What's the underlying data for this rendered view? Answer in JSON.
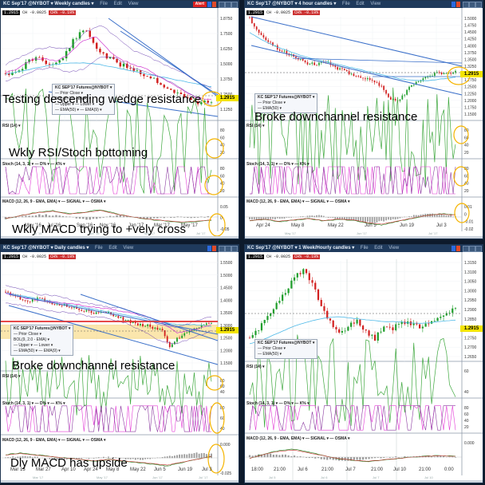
{
  "colors": {
    "up": "#1f9e2b",
    "down": "#d22020",
    "bollinger": "#6a3fb0",
    "ema50": "#4db9e8",
    "ema9": "#d03ad0",
    "trendline": "#3a6fc9",
    "rsi": "#3fa83f",
    "stoch_d": "#8b3aa0",
    "stoch_k": "#e33ad6",
    "macd": "#2a8a2a",
    "signal": "#cc3333",
    "osma": "#9a9a9a",
    "highlight": "#f5b400",
    "price": "#f4e400"
  },
  "panels": [
    {
      "title": "KC Sep'17 @NYBOT ▾  Weekly candles ▾",
      "menu": [
        "File",
        "Edit",
        "View"
      ],
      "alert_label": "Alert",
      "quote": {
        "last": "1.2915",
        "change": "CH -0.0025",
        "pct": "CH% -0.19%"
      },
      "legend": {
        "head": "KC SEP'17 Futures@NYBOT ▾",
        "rows": [
          "— Prior Close ▾",
          "BOL(9, 2.0 - EMA) ▾",
          "— Upper ▾  — Lower ▾",
          "— EMA(50) ▾  — EMA(9) ▾"
        ]
      },
      "price_tag": "1.2915",
      "y_ticks": [
        "1.8750",
        "1.7500",
        "1.6250",
        "1.5000",
        "1.3750",
        "1.2500",
        "1.1250"
      ],
      "x_ticks": [
        "May '16",
        "Jul '16",
        "Sep '16",
        "Nov '16",
        "Jan '17",
        "Mar '17",
        "May '17"
      ],
      "x_ticks2": [
        "Jul '16",
        "Nov '16",
        "Mar '17",
        "Jul '17"
      ],
      "rsi_label": "RSI   (14) ▾",
      "rsi_ticks": [
        "80",
        "60",
        "40",
        "20"
      ],
      "stoch_label": "Stoch   (14, 3, 1) ▾   — D% ▾   — K% ▾",
      "stoch_ticks": [
        "80",
        "60",
        "40",
        "20"
      ],
      "macd_label": "MACD   (12, 26, 9 - EMA, EMA) ▾   — SIGNAL ▾   — OSMA ▾",
      "macd_ticks": [
        "0.05",
        "0",
        "-0.05"
      ],
      "captions": [
        "Testing descending wedge resistance",
        "Wkly RSI/Stoch bottoming",
        "Wkly MACD trying to +vely cross"
      ]
    },
    {
      "title": "KC Sep'17 @NYBOT ▾  4 hour candles ▾",
      "menu": [
        "File",
        "Edit",
        "View"
      ],
      "quote": {
        "last": "1.2915",
        "change": "CH -0.0025",
        "pct": "CH% -0.19%"
      },
      "legend": {
        "head": "KC SEP'17 Futures@NYBOT ▾",
        "rows": [
          "— Prior Close ▾",
          "— EMA(50) ▾"
        ]
      },
      "price_tag": "1.2915",
      "y_ticks": [
        "1.5000",
        "1.4750",
        "1.4500",
        "1.4250",
        "1.4000",
        "1.3750",
        "1.3500",
        "1.3250",
        "1.3000",
        "1.2750",
        "1.2500",
        "1.2250",
        "1.2000",
        "1.1750",
        "1.1500"
      ],
      "x_ticks": [
        "Apr 24",
        "May 8",
        "May 22",
        "Jun 5",
        "Jun 19",
        "Jul 3"
      ],
      "x_ticks2": [
        "May '17",
        "Jun '17",
        "Jul '17"
      ],
      "rsi_label": "RSI   (14) ▾",
      "rsi_ticks": [
        "80",
        "60",
        "40",
        "20"
      ],
      "stoch_label": "Stoch   (14, 3, 1) ▾   — D% ▾   — K% ▾",
      "stoch_ticks": [
        "80",
        "60",
        "40",
        "20"
      ],
      "macd_label": "MACD   (12, 26, 9 - EMA, EMA) ▾   — SIGNAL ▾   — OSMA ▾",
      "macd_ticks": [
        "0.01",
        "0",
        "-0.01",
        "-0.02"
      ],
      "captions": [
        "Broke downchannel resistance"
      ]
    },
    {
      "title": "KC Sep'17 @NYBOT ▾  Daily candles ▾",
      "menu": [
        "File",
        "Edit",
        "View"
      ],
      "quote": {
        "last": "1.2915",
        "change": "CH -0.0025",
        "pct": "CH% -0.19%"
      },
      "legend": {
        "head": "KC SEP'17 Futures@NYBOT ▾",
        "rows": [
          "— Prior Close ▾",
          "BOL(9, 2.0 - EMA) ▾",
          "— Upper ▾  — Lower ▾",
          "— EMA(50) ▾  — EMA(9) ▾"
        ]
      },
      "price_tag": "1.2915",
      "y_ticks": [
        "1.5500",
        "1.5000",
        "1.4500",
        "1.4000",
        "1.3500",
        "1.3000",
        "1.2500",
        "1.2000",
        "1.1500"
      ],
      "x_ticks": [
        "Mar 13",
        "Mar 27",
        "Apr 10",
        "Apr 24",
        "May 8",
        "May 22",
        "Jun 5",
        "Jun 19",
        "Jul 3"
      ],
      "x_ticks2": [
        "Mar '17",
        "May '17",
        "Jun '17",
        "Jul '17"
      ],
      "rsi_label": "RSI   (14) ▾",
      "rsi_ticks": [
        "80",
        "60",
        "40"
      ],
      "stoch_label": "Stoch   (14, 3, 1) ▾   — D% ▾   — K% ▾",
      "stoch_ticks": [
        "80",
        "60",
        "40"
      ],
      "macd_label": "MACD   (12, 26, 9 - EMA, EMA) ▾   — SIGNAL ▾   — OSMA ▾",
      "macd_ticks": [
        "0.000",
        "-0.025"
      ],
      "captions": [
        "Broke downchannel resistance",
        "Dly MACD has upside"
      ]
    },
    {
      "title": "KC Sep'17 @NYBOT ▾  1 Week/Hourly candles ▾",
      "menu": [
        "File",
        "Edit",
        "View"
      ],
      "quote": {
        "last": "1.2915",
        "change": "CH -0.0025",
        "pct": "CH% -0.19%"
      },
      "legend": {
        "head": "KC SEP'17 Futures@NYBOT ▾",
        "rows": [
          "— Prior Close ▾",
          "— EMA(50) ▾"
        ]
      },
      "price_tag": "1.2915",
      "y_ticks": [
        "1.3150",
        "1.3100",
        "1.3050",
        "1.3000",
        "1.2950",
        "1.2900",
        "1.2850",
        "1.2800",
        "1.2750",
        "1.2700",
        "1.2650"
      ],
      "x_ticks": [
        "18:00",
        "21:00",
        "Jul 6",
        "21:00",
        "Jul 7",
        "21:00",
        "Jul 10",
        "21:00",
        "0:00"
      ],
      "x_ticks2": [
        "Jul 5",
        "Jul 6",
        "Jul 7",
        "Jul 10"
      ],
      "rsi_label": "RSI   (14) ▾",
      "rsi_ticks": [
        "60",
        "40"
      ],
      "stoch_label": "Stoch   (14, 3, 1) ▾   — D% ▾   — K% ▾",
      "stoch_ticks": [
        "80",
        "60",
        "40",
        "20"
      ],
      "macd_label": "MACD   (12, 26, 9 - EMA, EMA) ▾   — SIGNAL ▾   — OSMA ▾",
      "macd_ticks": [
        "0.000"
      ],
      "captions": []
    }
  ]
}
